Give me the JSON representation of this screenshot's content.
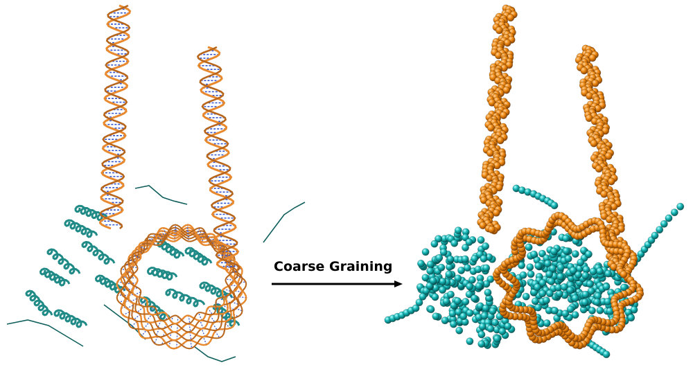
{
  "arrow_label": "Coarse Graining",
  "colors": {
    "dna": "#e8892e",
    "dna_dark": "#b8661c",
    "base_pairs": "#3355cc",
    "protein": "#1f8a86",
    "protein_dark": "#0f5f5c",
    "bead_dna": "#f08a12",
    "bead_protein": "#18b8b8",
    "arrow": "#000000"
  },
  "panels": {
    "left": {
      "representation": "atomistic-cartoon"
    },
    "right": {
      "representation": "coarse-grained-beads"
    }
  }
}
